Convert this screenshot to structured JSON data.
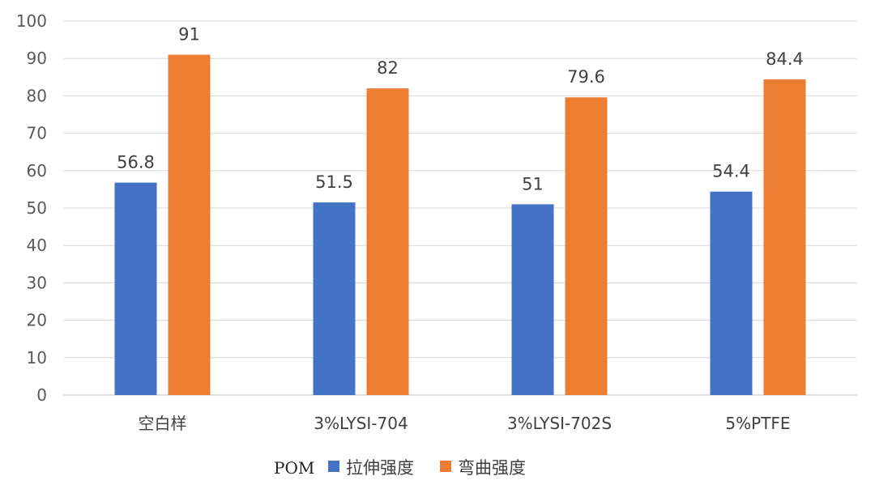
{
  "chart_data": {
    "type": "bar",
    "categories": [
      "空白样",
      "3%LYSI-704",
      "3%LYSI-702S",
      "5%PTFE"
    ],
    "series": [
      {
        "name": "拉伸强度",
        "values": [
          56.8,
          51.5,
          51,
          54.4
        ],
        "color": "#4472C4"
      },
      {
        "name": "弯曲强度",
        "values": [
          91,
          82,
          79.6,
          84.4
        ],
        "color": "#ED7D31"
      }
    ],
    "data_labels": [
      [
        "56.8",
        "51.5",
        "51",
        "54.4"
      ],
      [
        "91",
        "82",
        "79.6",
        "84.4"
      ]
    ],
    "yticks": [
      "0",
      "10",
      "20",
      "30",
      "40",
      "50",
      "60",
      "70",
      "80",
      "90",
      "100"
    ],
    "ylim": [
      0,
      100
    ],
    "grid": true,
    "legend": {
      "title": "POM",
      "position": "bottom"
    },
    "title": "",
    "xlabel": "",
    "ylabel": ""
  }
}
